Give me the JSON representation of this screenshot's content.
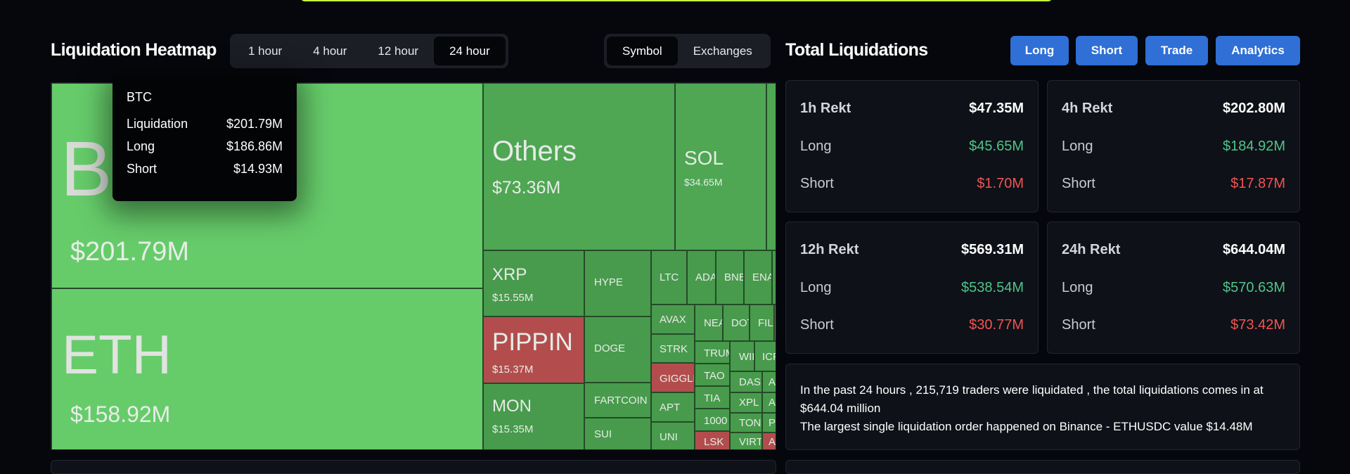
{
  "heatmap": {
    "title": "Liquidation Heatmap",
    "time_tabs": [
      "1 hour",
      "4 hour",
      "12 hour",
      "24 hour"
    ],
    "active_time": "24 hour",
    "view_tabs": [
      "Symbol",
      "Exchanges"
    ],
    "active_view": "Symbol",
    "cells": {
      "btc": {
        "label": "BTC",
        "value": "$201.79M"
      },
      "eth": {
        "label": "ETH",
        "value": "$158.92M"
      },
      "others": {
        "label": "Others",
        "value": "$73.36M"
      },
      "sol": {
        "label": "SOL",
        "value": "$34.65M"
      },
      "xrp": {
        "label": "XRP",
        "value": "$15.55M"
      },
      "pippin": {
        "label": "PIPPIN",
        "value": "$15.37M"
      },
      "mon": {
        "label": "MON",
        "value": "$15.35M"
      },
      "hype": "HYPE",
      "doge": "DOGE",
      "fartcoin": "FARTCOIN",
      "sui": "SUI",
      "ltc": "LTC",
      "ada": "ADA",
      "bnb": "BNB",
      "ena": "ENA",
      "avax": "AVAX",
      "near": "NEAR",
      "dot": "DOT",
      "fil": "FIL",
      "strk": "STRK",
      "trump": "TRUMP",
      "wif": "WIF",
      "icp": "ICP",
      "giggle": "GIGGLE",
      "tao": "TAO",
      "dash": "DASH",
      "tia": "TIA",
      "xpl": "XPL",
      "apt": "APT",
      "k1000": "1000",
      "ton": "TON",
      "uni": "UNI",
      "lsk": "LSK",
      "virtual": "VIRT",
      "a1": "A",
      "a2": "A",
      "a3": "A",
      "p1": "P"
    },
    "tooltip": {
      "symbol": "BTC",
      "rows": [
        {
          "k": "Liquidation",
          "v": "$201.79M"
        },
        {
          "k": "Long",
          "v": "$186.86M"
        },
        {
          "k": "Short",
          "v": "$14.93M"
        }
      ]
    }
  },
  "liquidations": {
    "title": "Total Liquidations",
    "buttons": [
      "Long",
      "Short",
      "Trade",
      "Analytics"
    ],
    "cards": [
      {
        "title": "1h Rekt",
        "total": "$47.35M",
        "long_label": "Long",
        "long": "$45.65M",
        "short_label": "Short",
        "short": "$1.70M"
      },
      {
        "title": "4h Rekt",
        "total": "$202.80M",
        "long_label": "Long",
        "long": "$184.92M",
        "short_label": "Short",
        "short": "$17.87M"
      },
      {
        "title": "12h Rekt",
        "total": "$569.31M",
        "long_label": "Long",
        "long": "$538.54M",
        "short_label": "Short",
        "short": "$30.77M"
      },
      {
        "title": "24h Rekt",
        "total": "$644.04M",
        "long_label": "Long",
        "long": "$570.63M",
        "short_label": "Short",
        "short": "$73.42M"
      }
    ],
    "summary_line1": "In the past 24 hours , 215,719 traders were liquidated , the total liquidations comes in at $644.04 million",
    "summary_line2": "The largest single liquidation order happened on Binance - ETHUSDC value $14.48M"
  },
  "colors": {
    "accent": "#2f6fd6",
    "bull": "#66cc6a",
    "bear": "#b34d4d",
    "long_text": "#4fc48a",
    "short_text": "#f05454"
  }
}
